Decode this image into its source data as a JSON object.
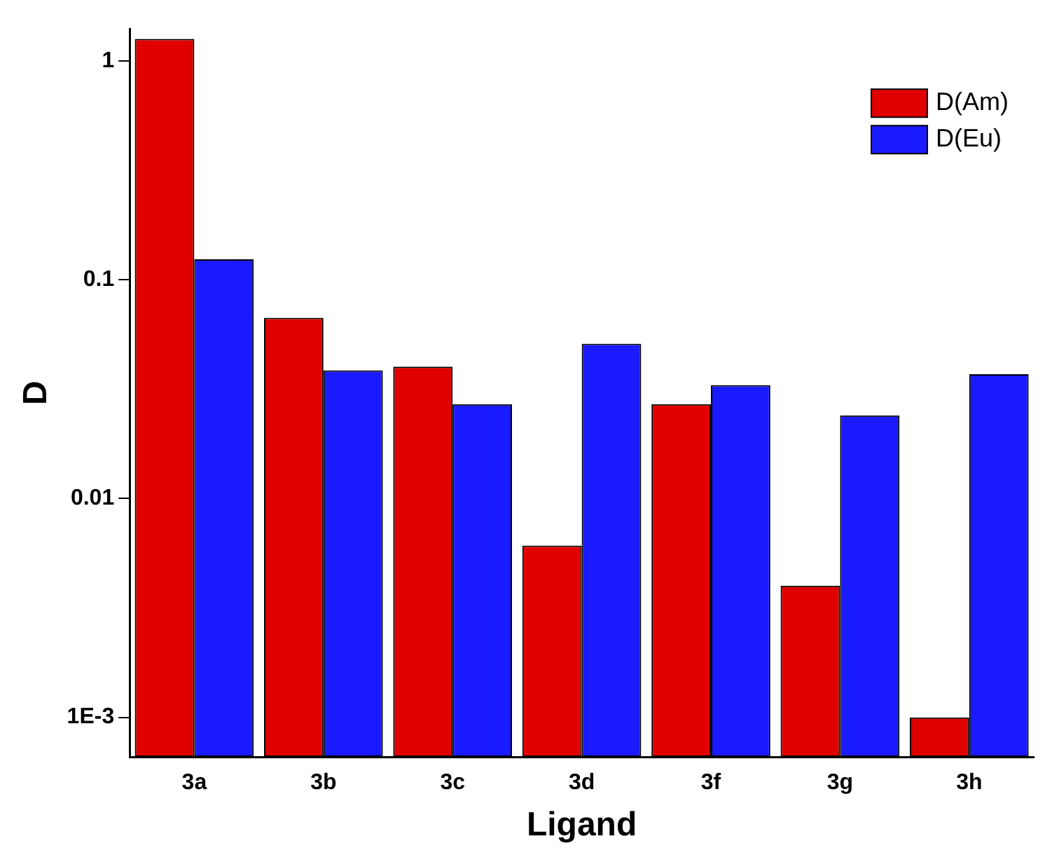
{
  "chart_data": {
    "type": "bar",
    "xlabel": "Ligand",
    "ylabel": "D",
    "categories": [
      "3a",
      "3b",
      "3c",
      "3d",
      "3f",
      "3g",
      "3h"
    ],
    "series": [
      {
        "name": "D(Am)",
        "color": "#e00000",
        "values": [
          1.26,
          0.067,
          0.04,
          0.0061,
          0.027,
          0.004,
          0.001
        ]
      },
      {
        "name": "D(Eu)",
        "color": "#1a1aff",
        "values": [
          0.124,
          0.0385,
          0.027,
          0.051,
          0.033,
          0.024,
          0.037
        ]
      }
    ],
    "log": "y",
    "ylim": [
      0.00066,
      1.4
    ],
    "yticks": [
      {
        "value": 0.001,
        "label": "1E-3"
      },
      0.01,
      0.1,
      1
    ],
    "grid": false,
    "legend": "top right"
  }
}
